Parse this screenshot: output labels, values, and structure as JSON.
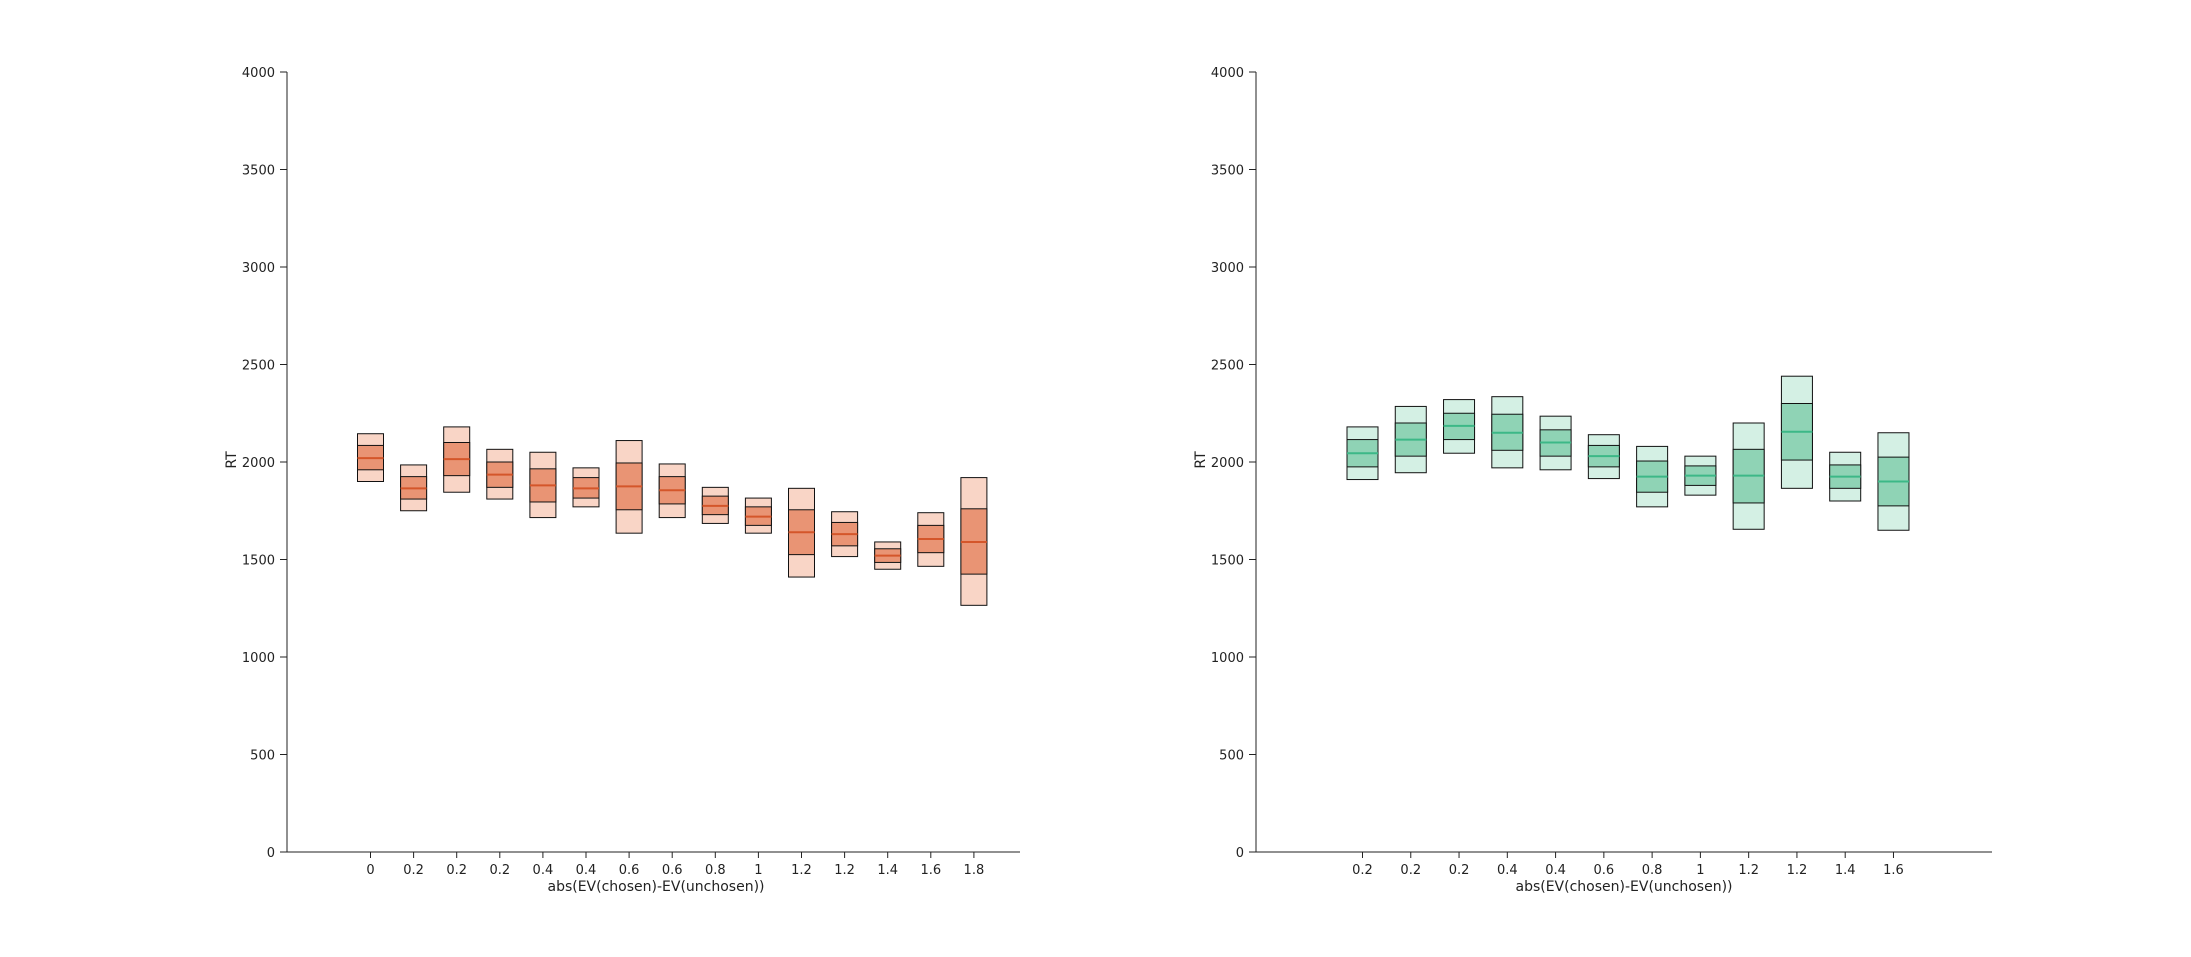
{
  "chart_data": [
    {
      "type": "box",
      "title": "",
      "xlabel": "abs(EV(chosen)-EV(unchosen))",
      "ylabel": "RT",
      "ylim": [
        0,
        4000
      ],
      "yticks": [
        0,
        500,
        1000,
        1500,
        2000,
        2500,
        3000,
        3500,
        4000
      ],
      "grid": false,
      "colors": {
        "fill_outer": "#f9d5c6",
        "fill_inner": "#e99474",
        "median": "#d4562a",
        "edge": "#111111"
      },
      "categories": [
        "0",
        "0.2",
        "0.2",
        "0.2",
        "0.4",
        "0.4",
        "0.6",
        "0.6",
        "0.8",
        "1",
        "1.2",
        "1.2",
        "1.4",
        "1.6",
        "1.8"
      ],
      "boxes": [
        {
          "outer_low": 1900,
          "inner_low": 1960,
          "median": 2020,
          "inner_high": 2085,
          "outer_high": 2145
        },
        {
          "outer_low": 1750,
          "inner_low": 1810,
          "median": 1865,
          "inner_high": 1925,
          "outer_high": 1985
        },
        {
          "outer_low": 1845,
          "inner_low": 1930,
          "median": 2015,
          "inner_high": 2100,
          "outer_high": 2180
        },
        {
          "outer_low": 1810,
          "inner_low": 1870,
          "median": 1935,
          "inner_high": 2000,
          "outer_high": 2065
        },
        {
          "outer_low": 1715,
          "inner_low": 1795,
          "median": 1880,
          "inner_high": 1965,
          "outer_high": 2050
        },
        {
          "outer_low": 1770,
          "inner_low": 1815,
          "median": 1865,
          "inner_high": 1920,
          "outer_high": 1970
        },
        {
          "outer_low": 1635,
          "inner_low": 1755,
          "median": 1875,
          "inner_high": 1995,
          "outer_high": 2110
        },
        {
          "outer_low": 1715,
          "inner_low": 1785,
          "median": 1855,
          "inner_high": 1925,
          "outer_high": 1990
        },
        {
          "outer_low": 1685,
          "inner_low": 1730,
          "median": 1775,
          "inner_high": 1825,
          "outer_high": 1870
        },
        {
          "outer_low": 1635,
          "inner_low": 1675,
          "median": 1720,
          "inner_high": 1770,
          "outer_high": 1815
        },
        {
          "outer_low": 1410,
          "inner_low": 1525,
          "median": 1640,
          "inner_high": 1755,
          "outer_high": 1865
        },
        {
          "outer_low": 1515,
          "inner_low": 1570,
          "median": 1630,
          "inner_high": 1690,
          "outer_high": 1745
        },
        {
          "outer_low": 1450,
          "inner_low": 1485,
          "median": 1520,
          "inner_high": 1555,
          "outer_high": 1590
        },
        {
          "outer_low": 1465,
          "inner_low": 1535,
          "median": 1605,
          "inner_high": 1675,
          "outer_high": 1740
        },
        {
          "outer_low": 1265,
          "inner_low": 1425,
          "median": 1590,
          "inner_high": 1760,
          "outer_high": 1920
        }
      ]
    },
    {
      "type": "box",
      "title": "",
      "xlabel": "abs(EV(chosen)-EV(unchosen))",
      "ylabel": "RT",
      "ylim": [
        0,
        4000
      ],
      "yticks": [
        0,
        500,
        1000,
        1500,
        2000,
        2500,
        3000,
        3500,
        4000
      ],
      "grid": false,
      "colors": {
        "fill_outer": "#d4f0e4",
        "fill_inner": "#8fd3b5",
        "median": "#3cb887",
        "edge": "#111111"
      },
      "categories": [
        "0.2",
        "0.2",
        "0.2",
        "0.4",
        "0.4",
        "0.6",
        "0.8",
        "1",
        "1.2",
        "1.2",
        "1.4",
        "1.6"
      ],
      "boxes": [
        {
          "outer_low": 1910,
          "inner_low": 1975,
          "median": 2045,
          "inner_high": 2115,
          "outer_high": 2180
        },
        {
          "outer_low": 1945,
          "inner_low": 2030,
          "median": 2115,
          "inner_high": 2200,
          "outer_high": 2285
        },
        {
          "outer_low": 2045,
          "inner_low": 2115,
          "median": 2185,
          "inner_high": 2250,
          "outer_high": 2320
        },
        {
          "outer_low": 1970,
          "inner_low": 2060,
          "median": 2150,
          "inner_high": 2245,
          "outer_high": 2335
        },
        {
          "outer_low": 1960,
          "inner_low": 2030,
          "median": 2100,
          "inner_high": 2165,
          "outer_high": 2235
        },
        {
          "outer_low": 1915,
          "inner_low": 1975,
          "median": 2030,
          "inner_high": 2085,
          "outer_high": 2140
        },
        {
          "outer_low": 1770,
          "inner_low": 1845,
          "median": 1925,
          "inner_high": 2005,
          "outer_high": 2080
        },
        {
          "outer_low": 1830,
          "inner_low": 1880,
          "median": 1930,
          "inner_high": 1980,
          "outer_high": 2030
        },
        {
          "outer_low": 1655,
          "inner_low": 1790,
          "median": 1930,
          "inner_high": 2065,
          "outer_high": 2200
        },
        {
          "outer_low": 1865,
          "inner_low": 2010,
          "median": 2155,
          "inner_high": 2300,
          "outer_high": 2440
        },
        {
          "outer_low": 1800,
          "inner_low": 1865,
          "median": 1925,
          "inner_high": 1985,
          "outer_high": 2050
        },
        {
          "outer_low": 1650,
          "inner_low": 1775,
          "median": 1900,
          "inner_high": 2025,
          "outer_high": 2150
        }
      ]
    }
  ]
}
